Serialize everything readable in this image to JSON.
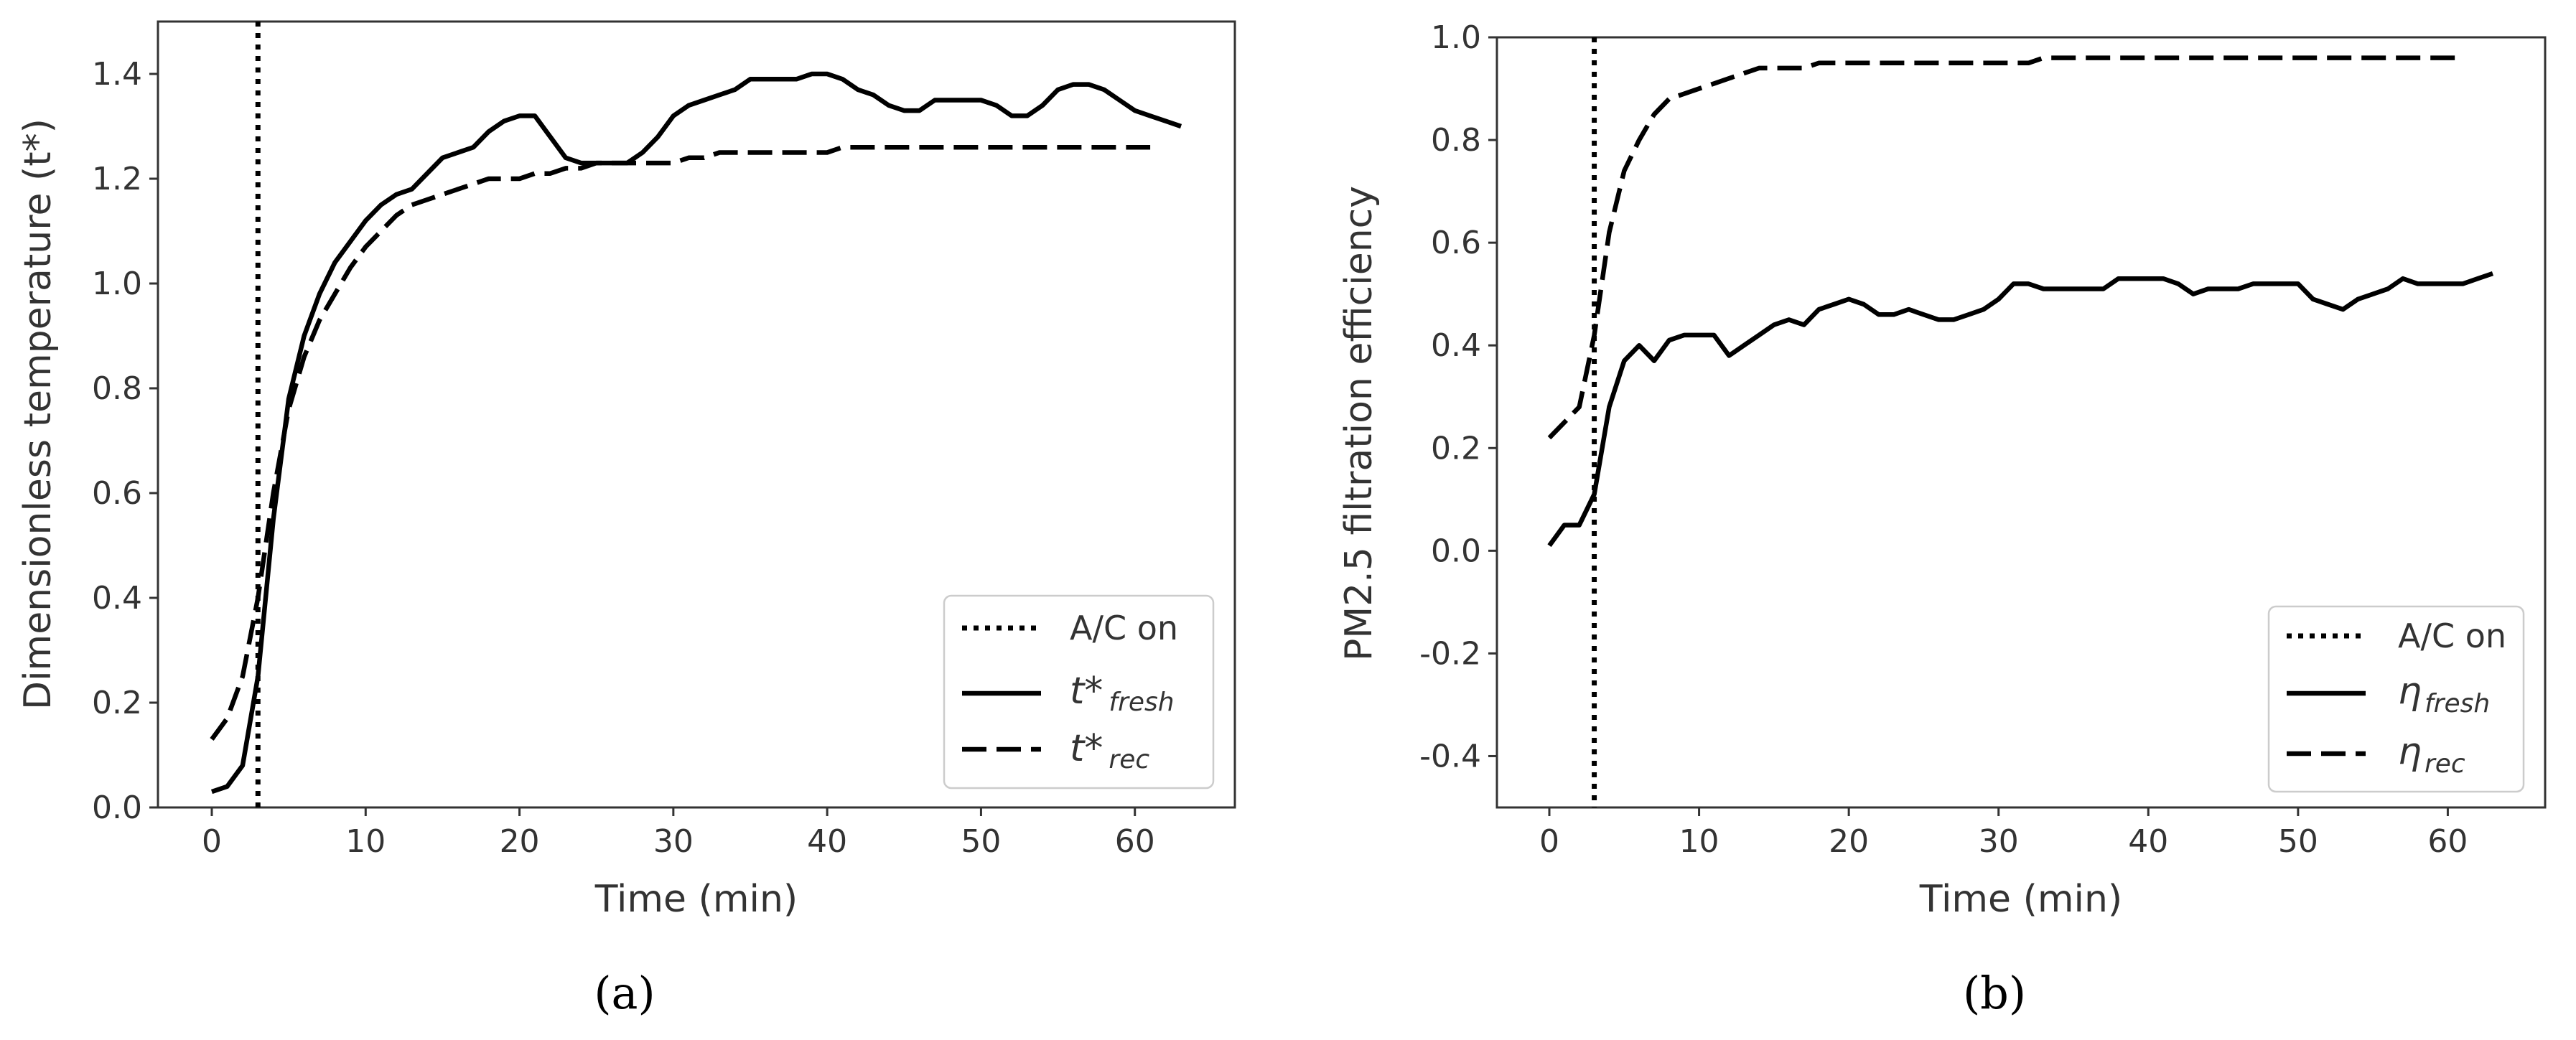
{
  "chart_data": [
    {
      "type": "line",
      "panel_label": "(a)",
      "xlabel": "Time (min)",
      "ylabel": "Dimensionless temperature (t*)",
      "xlim": [
        -3.5,
        66.5
      ],
      "ylim": [
        0.0,
        1.5
      ],
      "xticks": [
        "0",
        "10",
        "20",
        "30",
        "40",
        "50",
        "60"
      ],
      "xtick_values": [
        0,
        10,
        20,
        30,
        40,
        50,
        60
      ],
      "yticks": [
        "0.0",
        "0.2",
        "0.4",
        "0.6",
        "0.8",
        "1.0",
        "1.2",
        "1.4"
      ],
      "ytick_values": [
        0.0,
        0.2,
        0.4,
        0.6,
        0.8,
        1.0,
        1.2,
        1.4
      ],
      "ac_on_time": 3,
      "legend_position": "bottom-right",
      "legend": [
        {
          "style": "dotted",
          "label": "A/C on",
          "base": "",
          "sub": ""
        },
        {
          "style": "solid",
          "label": "",
          "base": "t*",
          "sub": "fresh"
        },
        {
          "style": "dashed",
          "label": "",
          "base": "t*",
          "sub": "rec"
        }
      ],
      "series": [
        {
          "name": "t*_fresh",
          "style": "solid",
          "x": [
            0,
            1,
            2,
            3,
            4,
            5,
            6,
            7,
            8,
            9,
            10,
            11,
            12,
            13,
            14,
            15,
            16,
            17,
            18,
            19,
            20,
            21,
            22,
            23,
            24,
            25,
            26,
            27,
            28,
            29,
            30,
            31,
            32,
            33,
            34,
            35,
            36,
            37,
            38,
            39,
            40,
            41,
            42,
            43,
            44,
            45,
            46,
            47,
            48,
            49,
            50,
            51,
            52,
            53,
            54,
            55,
            56,
            57,
            58,
            59,
            60,
            61,
            62,
            63
          ],
          "values": [
            0.03,
            0.04,
            0.08,
            0.25,
            0.55,
            0.78,
            0.9,
            0.98,
            1.04,
            1.08,
            1.12,
            1.15,
            1.17,
            1.18,
            1.21,
            1.24,
            1.25,
            1.26,
            1.29,
            1.31,
            1.32,
            1.32,
            1.28,
            1.24,
            1.23,
            1.23,
            1.23,
            1.23,
            1.25,
            1.28,
            1.32,
            1.34,
            1.35,
            1.36,
            1.37,
            1.39,
            1.39,
            1.39,
            1.39,
            1.4,
            1.4,
            1.39,
            1.37,
            1.36,
            1.34,
            1.33,
            1.33,
            1.35,
            1.35,
            1.35,
            1.35,
            1.34,
            1.32,
            1.32,
            1.34,
            1.37,
            1.38,
            1.38,
            1.37,
            1.35,
            1.33,
            1.32,
            1.31,
            1.3
          ]
        },
        {
          "name": "t*_rec",
          "style": "dashed",
          "x": [
            0,
            1,
            2,
            3,
            4,
            5,
            6,
            7,
            8,
            9,
            10,
            11,
            12,
            13,
            14,
            15,
            16,
            17,
            18,
            19,
            20,
            21,
            22,
            23,
            24,
            25,
            26,
            27,
            28,
            29,
            30,
            31,
            32,
            33,
            34,
            35,
            36,
            37,
            38,
            39,
            40,
            41,
            42,
            43,
            44,
            45,
            46,
            47,
            48,
            49,
            50,
            51,
            52,
            53,
            54,
            55,
            56,
            57,
            58,
            59,
            60,
            61
          ],
          "values": [
            0.13,
            0.17,
            0.25,
            0.4,
            0.6,
            0.76,
            0.86,
            0.93,
            0.98,
            1.03,
            1.07,
            1.1,
            1.13,
            1.15,
            1.16,
            1.17,
            1.18,
            1.19,
            1.2,
            1.2,
            1.2,
            1.21,
            1.21,
            1.22,
            1.22,
            1.23,
            1.23,
            1.23,
            1.23,
            1.23,
            1.23,
            1.24,
            1.24,
            1.25,
            1.25,
            1.25,
            1.25,
            1.25,
            1.25,
            1.25,
            1.25,
            1.26,
            1.26,
            1.26,
            1.26,
            1.26,
            1.26,
            1.26,
            1.26,
            1.26,
            1.26,
            1.26,
            1.26,
            1.26,
            1.26,
            1.26,
            1.26,
            1.26,
            1.26,
            1.26,
            1.26,
            1.26
          ]
        }
      ]
    },
    {
      "type": "line",
      "panel_label": "(b)",
      "xlabel": "Time (min)",
      "ylabel": "PM2.5 filtration efficiency",
      "xlim": [
        -3.5,
        66.5
      ],
      "ylim": [
        -0.5,
        1.0
      ],
      "xticks": [
        "0",
        "10",
        "20",
        "30",
        "40",
        "50",
        "60"
      ],
      "xtick_values": [
        0,
        10,
        20,
        30,
        40,
        50,
        60
      ],
      "yticks": [
        "-0.4",
        "-0.2",
        "0.0",
        "0.2",
        "0.4",
        "0.6",
        "0.8",
        "1.0"
      ],
      "ytick_values": [
        -0.4,
        -0.2,
        0.0,
        0.2,
        0.4,
        0.6,
        0.8,
        1.0
      ],
      "ac_on_time": 3,
      "legend_position": "bottom-right",
      "legend": [
        {
          "style": "dotted",
          "label": "A/C on",
          "base": "",
          "sub": ""
        },
        {
          "style": "solid",
          "label": "",
          "base": "η",
          "sub": "fresh"
        },
        {
          "style": "dashed",
          "label": "",
          "base": "η",
          "sub": "rec"
        }
      ],
      "series": [
        {
          "name": "eta_fresh",
          "style": "solid",
          "x": [
            0,
            1,
            2,
            3,
            4,
            5,
            6,
            7,
            8,
            9,
            10,
            11,
            12,
            13,
            14,
            15,
            16,
            17,
            18,
            19,
            20,
            21,
            22,
            23,
            24,
            25,
            26,
            27,
            28,
            29,
            30,
            31,
            32,
            33,
            34,
            35,
            36,
            37,
            38,
            39,
            40,
            41,
            42,
            43,
            44,
            45,
            46,
            47,
            48,
            49,
            50,
            51,
            52,
            53,
            54,
            55,
            56,
            57,
            58,
            59,
            60,
            61,
            62,
            63
          ],
          "values": [
            0.01,
            0.05,
            0.05,
            0.11,
            0.28,
            0.37,
            0.4,
            0.37,
            0.41,
            0.42,
            0.42,
            0.42,
            0.38,
            0.4,
            0.42,
            0.44,
            0.45,
            0.44,
            0.47,
            0.48,
            0.49,
            0.48,
            0.46,
            0.46,
            0.47,
            0.46,
            0.45,
            0.45,
            0.46,
            0.47,
            0.49,
            0.52,
            0.52,
            0.51,
            0.51,
            0.51,
            0.51,
            0.51,
            0.53,
            0.53,
            0.53,
            0.53,
            0.52,
            0.5,
            0.51,
            0.51,
            0.51,
            0.52,
            0.52,
            0.52,
            0.52,
            0.49,
            0.48,
            0.47,
            0.49,
            0.5,
            0.51,
            0.53,
            0.52,
            0.52,
            0.52,
            0.52,
            0.53,
            0.54
          ]
        },
        {
          "name": "eta_rec",
          "style": "dashed",
          "x": [
            0,
            1,
            2,
            3,
            4,
            5,
            6,
            7,
            8,
            9,
            10,
            11,
            12,
            13,
            14,
            15,
            16,
            17,
            18,
            19,
            20,
            21,
            22,
            23,
            24,
            25,
            26,
            27,
            28,
            29,
            30,
            31,
            32,
            33,
            34,
            35,
            36,
            37,
            38,
            39,
            40,
            41,
            42,
            43,
            44,
            45,
            46,
            47,
            48,
            49,
            50,
            51,
            52,
            53,
            54,
            55,
            56,
            57,
            58,
            59,
            60,
            61
          ],
          "values": [
            0.22,
            0.25,
            0.28,
            0.42,
            0.62,
            0.74,
            0.8,
            0.85,
            0.88,
            0.89,
            0.9,
            0.91,
            0.92,
            0.93,
            0.94,
            0.94,
            0.94,
            0.94,
            0.95,
            0.95,
            0.95,
            0.95,
            0.95,
            0.95,
            0.95,
            0.95,
            0.95,
            0.95,
            0.95,
            0.95,
            0.95,
            0.95,
            0.95,
            0.96,
            0.96,
            0.96,
            0.96,
            0.96,
            0.96,
            0.96,
            0.96,
            0.96,
            0.96,
            0.96,
            0.96,
            0.96,
            0.96,
            0.96,
            0.96,
            0.96,
            0.96,
            0.96,
            0.96,
            0.96,
            0.96,
            0.96,
            0.96,
            0.96,
            0.96,
            0.96,
            0.96,
            0.96
          ]
        }
      ]
    }
  ]
}
